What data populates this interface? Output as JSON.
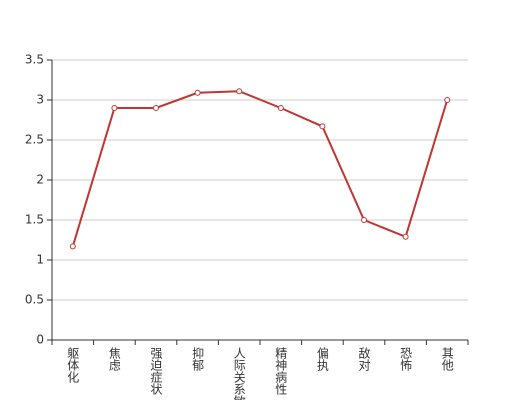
{
  "chart_data": {
    "type": "line",
    "categories": [
      "躯体化",
      "焦虑",
      "强迫症状",
      "抑郁",
      "人际关系敏感",
      "精神病性",
      "偏执",
      "敌对",
      "恐怖",
      "其他"
    ],
    "values": [
      1.17,
      2.9,
      2.9,
      3.09,
      3.11,
      2.9,
      2.67,
      1.5,
      1.29,
      3.0
    ],
    "color": "#c23531",
    "ylim": [
      0,
      3.5
    ],
    "yticks": [
      0,
      0.5,
      1,
      1.5,
      2,
      2.5,
      3,
      3.5
    ],
    "grid": true
  }
}
